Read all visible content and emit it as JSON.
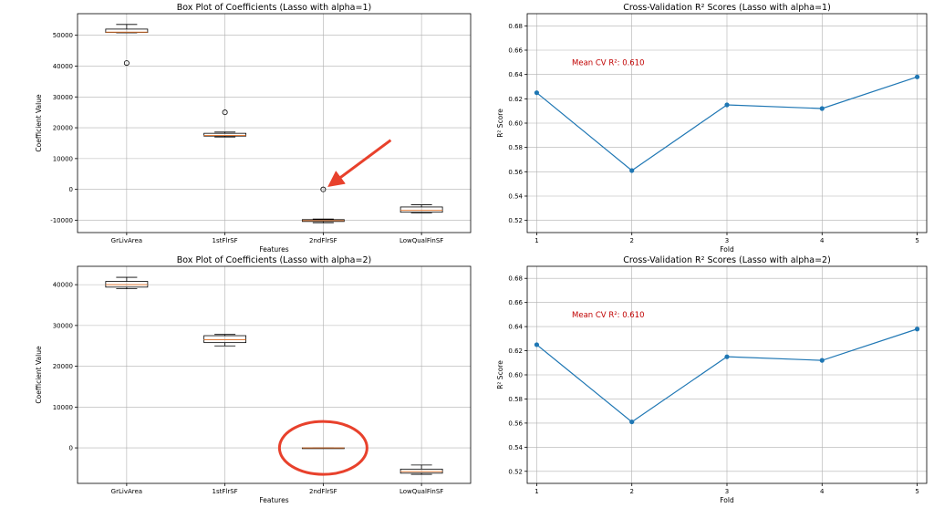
{
  "chart_data": [
    {
      "type": "box",
      "title": "Box Plot of Coefficients (Lasso with alpha=1)",
      "xlabel": "Features",
      "ylabel": "Coefficient Value",
      "ylim": [
        -14000,
        57000
      ],
      "yticks": [
        -10000,
        0,
        10000,
        20000,
        30000,
        40000,
        50000
      ],
      "categories": [
        "GrLivArea",
        "1stFlrSF",
        "2ndFlrSF",
        "LowQualFinSF"
      ],
      "boxes": [
        {
          "min": 50800,
          "q1": 50900,
          "median": 51000,
          "q3": 52000,
          "max": 53500,
          "outliers": [
            41000
          ]
        },
        {
          "min": 17000,
          "q1": 17300,
          "median": 17500,
          "q3": 18200,
          "max": 18600,
          "outliers": [
            25000
          ]
        },
        {
          "min": -10800,
          "q1": -10400,
          "median": -10100,
          "q3": -9800,
          "max": -9600,
          "outliers": [
            0
          ]
        },
        {
          "min": -7600,
          "q1": -7400,
          "median": -6800,
          "q3": -5700,
          "max": -5000,
          "outliers": []
        }
      ],
      "grid": true
    },
    {
      "type": "line",
      "title": "Cross-Validation R² Scores (Lasso with alpha=1)",
      "xlabel": "Fold",
      "ylabel": "R² Score",
      "x": [
        1,
        2,
        3,
        4,
        5
      ],
      "y": [
        0.625,
        0.561,
        0.615,
        0.612,
        0.638
      ],
      "ylim": [
        0.51,
        0.69
      ],
      "yticks": [
        0.52,
        0.54,
        0.56,
        0.58,
        0.6,
        0.62,
        0.64,
        0.66,
        0.68
      ],
      "annotation": "Mean CV R²: 0.610",
      "grid": true
    },
    {
      "type": "box",
      "title": "Box Plot of Coefficients (Lasso with alpha=2)",
      "xlabel": "Features",
      "ylabel": "Coefficient Value",
      "ylim": [
        -8700,
        44500
      ],
      "yticks": [
        0,
        10000,
        20000,
        30000,
        40000
      ],
      "categories": [
        "GrLivArea",
        "1stFlrSF",
        "2ndFlrSF",
        "LowQualFinSF"
      ],
      "boxes": [
        {
          "min": 39000,
          "q1": 39400,
          "median": 40000,
          "q3": 40800,
          "max": 41800,
          "outliers": []
        },
        {
          "min": 25000,
          "q1": 25800,
          "median": 26500,
          "q3": 27500,
          "max": 27800,
          "outliers": []
        },
        {
          "min": 0,
          "q1": 0,
          "median": 0,
          "q3": 0,
          "max": 0,
          "outliers": []
        },
        {
          "min": -6500,
          "q1": -6200,
          "median": -5800,
          "q3": -5200,
          "max": -4200,
          "outliers": []
        }
      ],
      "grid": true
    },
    {
      "type": "line",
      "title": "Cross-Validation R² Scores (Lasso with alpha=2)",
      "xlabel": "Fold",
      "ylabel": "R² Score",
      "x": [
        1,
        2,
        3,
        4,
        5
      ],
      "y": [
        0.625,
        0.561,
        0.615,
        0.612,
        0.638
      ],
      "ylim": [
        0.51,
        0.69
      ],
      "yticks": [
        0.52,
        0.54,
        0.56,
        0.58,
        0.6,
        0.62,
        0.64,
        0.66,
        0.68
      ],
      "annotation": "Mean CV R²: 0.610",
      "grid": true
    }
  ],
  "markup": {
    "color": "#e8412c",
    "arrow": "points to the 2ndFlrSF outlier at 0 in the alpha=1 box plot",
    "circle": "circles the 2ndFlrSF box at 0 in the alpha=2 box plot"
  }
}
